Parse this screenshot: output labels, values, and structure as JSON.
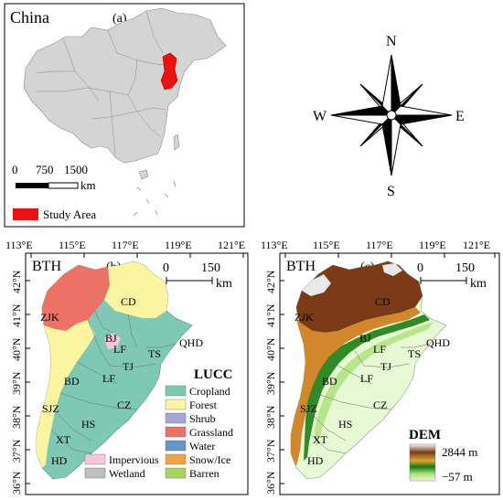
{
  "panel_a": {
    "country_label": "China",
    "panel_tag": "(a)",
    "scale_ticks": [
      "0",
      "750",
      "1500"
    ],
    "scale_unit": "km",
    "legend_label": "Study Area",
    "colors": {
      "land": "#d4d4d4",
      "study_area": "#ee1111",
      "legend_swatch": "#ee1111"
    }
  },
  "compass": {
    "north": "N",
    "south": "S",
    "east": "E",
    "west": "W"
  },
  "panel_b": {
    "region_label": "BTH",
    "panel_tag": "(b)",
    "scale_ticks": [
      "0",
      "150"
    ],
    "scale_unit": "km",
    "top_ticks": [
      "113°E",
      "115°E",
      "117°E",
      "119°E",
      "121°E"
    ],
    "left_ticks": [
      "42°N",
      "41°N",
      "40°N",
      "39°N",
      "38°N",
      "37°N",
      "36°N"
    ],
    "city_labels": [
      "CD",
      "ZJK",
      "BJ",
      "QHD",
      "LF",
      "TS",
      "TJ",
      "LF",
      "BD",
      "CZ",
      "SJZ",
      "HS",
      "XT",
      "HD"
    ],
    "legend_title": "LUCC",
    "legend": [
      {
        "label": "Cropland",
        "color": "#7fc8b4"
      },
      {
        "label": "Forest",
        "color": "#fbf5a2"
      },
      {
        "label": "Shrub",
        "color": "#a6a6d6"
      },
      {
        "label": "Grassland",
        "color": "#ec7166"
      },
      {
        "label": "Water",
        "color": "#6096c8"
      },
      {
        "label": "Snow/Ice",
        "color": "#f3a343"
      },
      {
        "label": "Barren",
        "color": "#a9d45d"
      },
      {
        "label": "Impervious",
        "color": "#f7c6dd"
      },
      {
        "label": "Wetland",
        "color": "#bfbfbf"
      }
    ]
  },
  "panel_c": {
    "region_label": "BTH",
    "panel_tag": "(c)",
    "scale_ticks": [
      "0",
      "150"
    ],
    "scale_unit": "km",
    "top_ticks": [
      "113°E",
      "115°E",
      "117°E",
      "119°E",
      "121°E"
    ],
    "left_ticks": [
      "42°N",
      "41°N",
      "40°N",
      "39°N",
      "38°N",
      "37°N",
      "36°N"
    ],
    "city_labels": [
      "CD",
      "ZJK",
      "BJ",
      "QHD",
      "LF",
      "TS",
      "TJ",
      "LF",
      "BD",
      "CZ",
      "SJZ",
      "HS",
      "XT",
      "HD"
    ],
    "legend_title": "DEM",
    "dem_max_label": "2844 m",
    "dem_min_label": "−57 m",
    "ramp_colors": [
      "#f5f5f5",
      "#7a3b16",
      "#e0a82c",
      "#137a18",
      "#a7de78",
      "#e9f9d8"
    ]
  }
}
